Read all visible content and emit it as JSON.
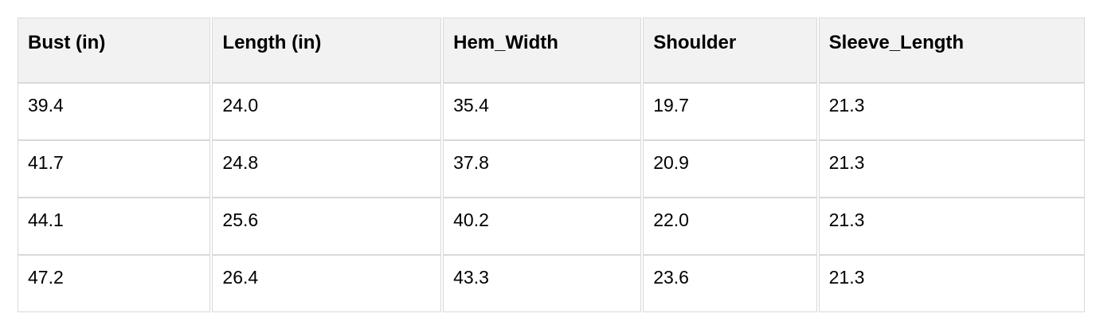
{
  "table": {
    "columns": [
      "Bust (in)",
      "Length (in)",
      "Hem_Width",
      "Shoulder",
      "Sleeve_Length"
    ],
    "rows": [
      [
        "39.4",
        "24.0",
        "35.4",
        "19.7",
        "21.3"
      ],
      [
        "41.7",
        "24.8",
        "37.8",
        "20.9",
        "21.3"
      ],
      [
        "44.1",
        "25.6",
        "40.2",
        "22.0",
        "21.3"
      ],
      [
        "47.2",
        "26.4",
        "43.3",
        "23.6",
        "21.3"
      ]
    ]
  },
  "colors": {
    "header_bg": "#f2f2f2",
    "cell_bg": "#ffffff",
    "border": "#d9d9d9",
    "text": "#000000",
    "page_bg": "#ffffff"
  }
}
